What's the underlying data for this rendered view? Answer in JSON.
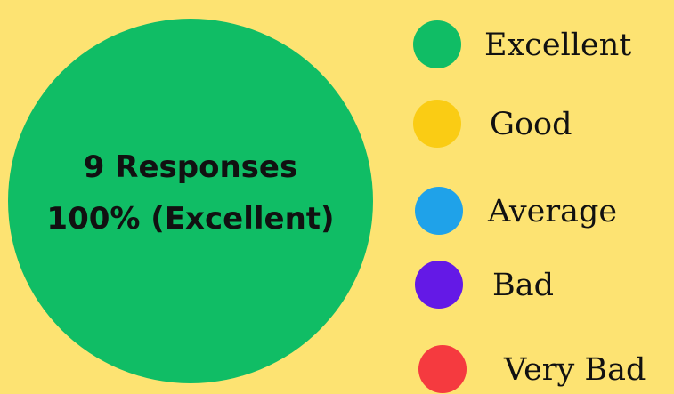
{
  "chart_data": {
    "type": "pie",
    "categories": [
      "Excellent",
      "Good",
      "Average",
      "Bad",
      "Very Bad"
    ],
    "values": [
      100,
      0,
      0,
      0,
      0
    ],
    "unit": "%",
    "colors": [
      "#10BD65",
      "#FACC14",
      "#1FA2E9",
      "#6419E6",
      "#F53A3F"
    ],
    "center_label": {
      "line1": "9 Responses",
      "line2": "100% (Excellent)"
    },
    "legend_position": "right"
  }
}
